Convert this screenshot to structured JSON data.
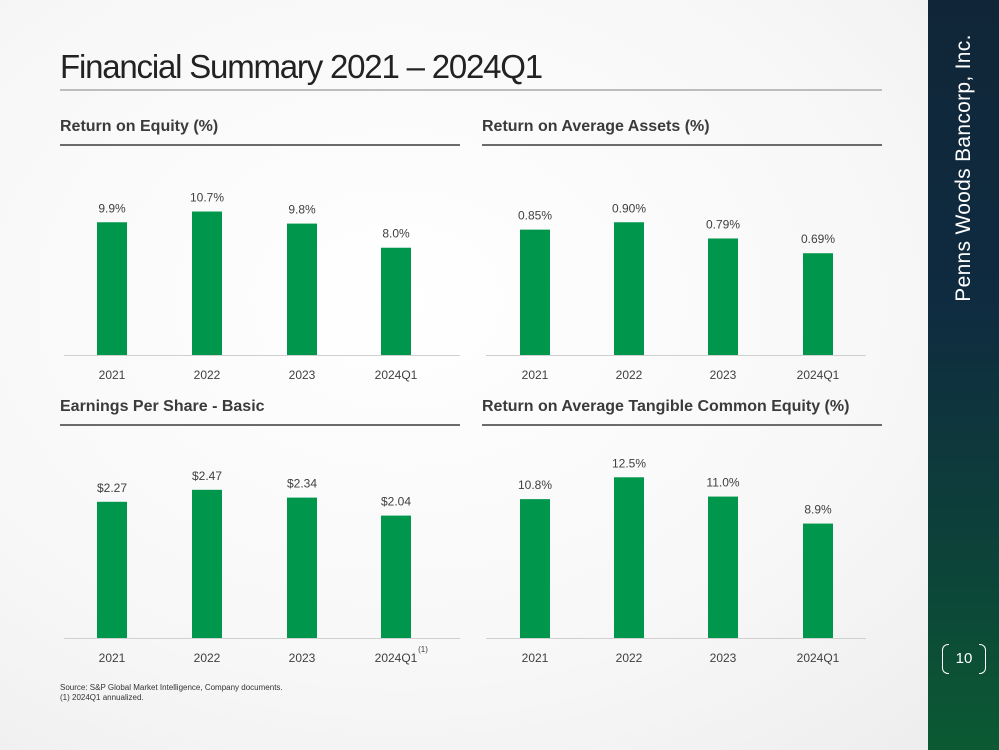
{
  "slide_title": "Financial Summary 2021 – 2024Q1",
  "side_label": "Penns Woods Bancorp, Inc.",
  "page_number": "10",
  "footnote_source": "Source: S&P Global Market Intelligence, Company documents.",
  "footnote_note": "(1) 2024Q1 annualized.",
  "colors": {
    "bar": "#00964b",
    "axis": "#d0d0d0"
  },
  "chart_data": [
    {
      "type": "bar",
      "title": "Return on Equity (%)",
      "categories": [
        "2021",
        "2022",
        "2023",
        "2024Q1"
      ],
      "values": [
        9.9,
        10.7,
        9.8,
        8.0
      ],
      "labels": [
        "9.9%",
        "10.7%",
        "9.8%",
        "8.0%"
      ],
      "ylim": [
        0,
        13.2
      ],
      "xlabel": "",
      "ylabel": ""
    },
    {
      "type": "bar",
      "title": "Return on Average Assets (%)",
      "categories": [
        "2021",
        "2022",
        "2023",
        "2024Q1"
      ],
      "values": [
        0.85,
        0.9,
        0.79,
        0.69
      ],
      "labels": [
        "0.85%",
        "0.90%",
        "0.79%",
        "0.69%"
      ],
      "ylim": [
        0,
        1.2
      ],
      "xlabel": "",
      "ylabel": ""
    },
    {
      "type": "bar",
      "title": "Earnings Per Share - Basic",
      "categories": [
        "2021",
        "2022",
        "2023",
        "2024Q1"
      ],
      "category_note": [
        "",
        "",
        "",
        "(1)"
      ],
      "values": [
        2.27,
        2.47,
        2.34,
        2.04
      ],
      "labels": [
        "$2.27",
        "$2.47",
        "$2.34",
        "$2.04"
      ],
      "ylim": [
        0,
        3.0
      ],
      "xlabel": "",
      "ylabel": ""
    },
    {
      "type": "bar",
      "title": "Return on Average Tangible Common Equity (%)",
      "categories": [
        "2021",
        "2022",
        "2023",
        "2024Q1"
      ],
      "values": [
        10.8,
        12.5,
        11.0,
        8.9
      ],
      "labels": [
        "10.8%",
        "12.5%",
        "11.0%",
        "8.9%"
      ],
      "ylim": [
        0,
        14.0
      ],
      "xlabel": "",
      "ylabel": ""
    }
  ]
}
